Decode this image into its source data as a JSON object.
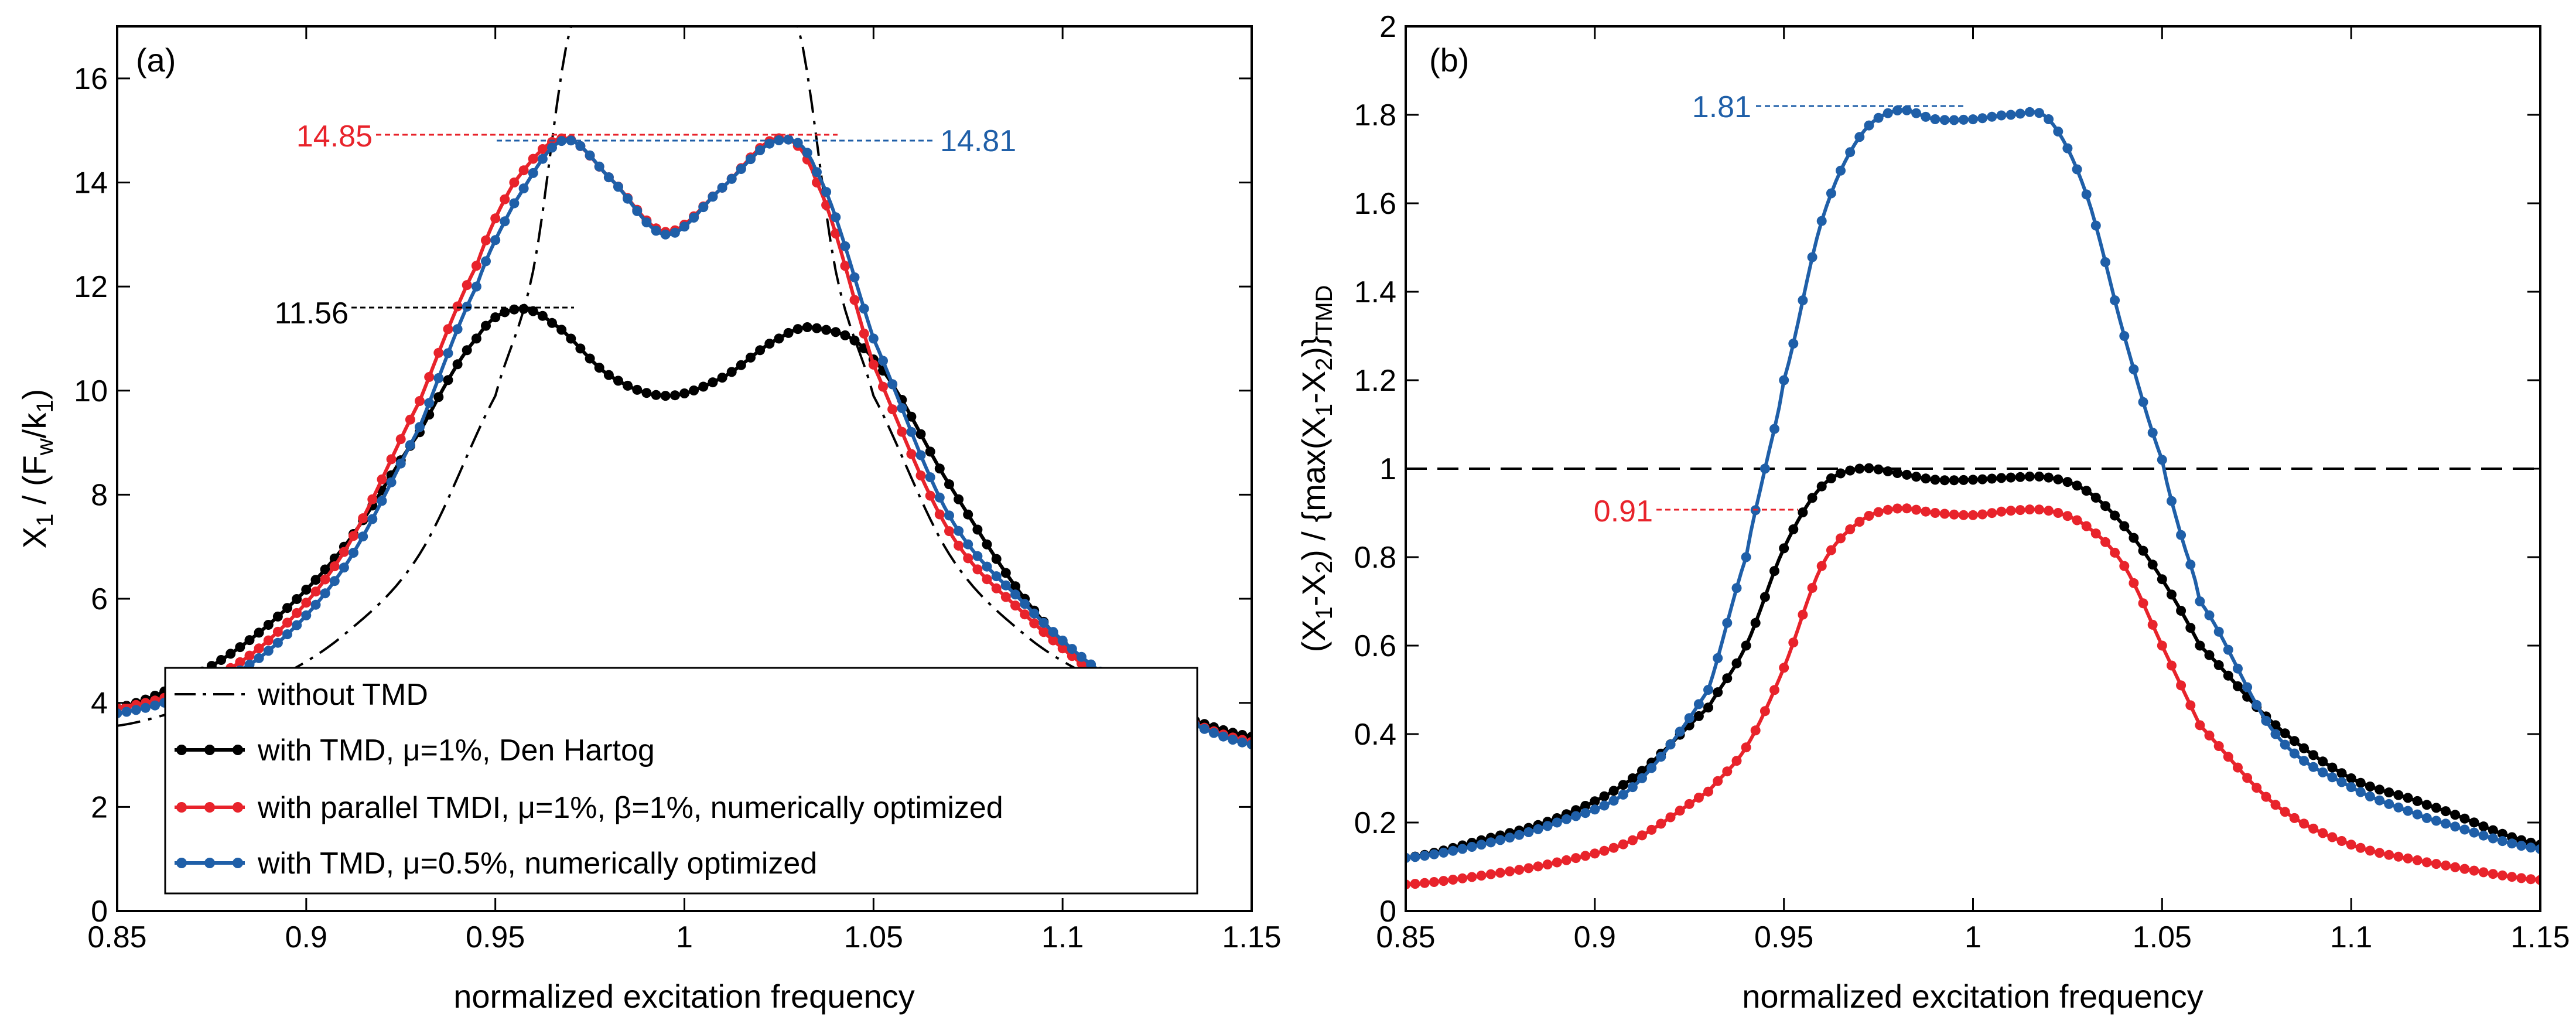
{
  "chart_data": [
    {
      "type": "line",
      "panel_label": "(a)",
      "xlabel": "normalized excitation frequency",
      "ylabel": "X1 / (Fw/k1)",
      "xlim": [
        0.85,
        1.15
      ],
      "ylim": [
        0,
        17
      ],
      "xticks": [
        "0.85",
        "0.9",
        "0.95",
        "1",
        "1.05",
        "1.1",
        "1.15"
      ],
      "yticks": [
        "0",
        "2",
        "4",
        "6",
        "8",
        "10",
        "12",
        "14",
        "16"
      ],
      "grid": false,
      "legend": {
        "placement": "bottom-center",
        "entries": [
          "without TMD",
          "with TMD, μ=1%, Den Hartog",
          "with parallel TMDI, μ=1%, β=1%, numerically optimized",
          "with TMD, μ=0.5%, numerically optimized"
        ]
      },
      "annotations": [
        {
          "text": "14.85",
          "color": "#e8232b"
        },
        {
          "text": "14.81",
          "color": "#1f5fa8"
        },
        {
          "text": "11.56",
          "color": "#000000"
        }
      ],
      "series": [
        {
          "name": "without TMD",
          "color": "#000000",
          "style": "dash-dot",
          "x": [
            0.85,
            0.87,
            0.89,
            0.91,
            0.93,
            0.95,
            0.96,
            0.97,
            1.03,
            1.04,
            1.05,
            1.07,
            1.09,
            1.11,
            1.13,
            1.15
          ],
          "y": [
            3.56,
            3.93,
            4.41,
            5.31,
            6.86,
            9.9,
            12.3,
            17.0,
            17.0,
            12.3,
            9.9,
            6.86,
            5.31,
            4.41,
            3.8,
            3.32
          ]
        },
        {
          "name": "with TMD, μ=1%, Den Hartog",
          "color": "#000000",
          "style": "solid-dots",
          "x": [
            0.85,
            0.87,
            0.89,
            0.91,
            0.93,
            0.945,
            0.955,
            0.965,
            0.98,
            0.995,
            1.01,
            1.025,
            1.035,
            1.05,
            1.07,
            1.09,
            1.11,
            1.13,
            1.15
          ],
          "y": [
            3.9,
            4.5,
            5.5,
            7.0,
            9.2,
            11.0,
            11.56,
            11.3,
            10.3,
            9.9,
            10.25,
            11.0,
            11.2,
            10.6,
            8.2,
            6.0,
            4.5,
            3.8,
            3.35
          ]
        },
        {
          "name": "with parallel TMDI, μ=1%, β=1%, numerically optimized",
          "color": "#e8232b",
          "style": "solid-dots",
          "x": [
            0.85,
            0.87,
            0.89,
            0.91,
            0.93,
            0.945,
            0.955,
            0.968,
            0.98,
            0.995,
            1.01,
            1.025,
            1.035,
            1.05,
            1.07,
            1.09,
            1.11,
            1.13,
            1.15
          ],
          "y": [
            3.9,
            4.3,
            5.2,
            6.9,
            9.8,
            12.4,
            14.0,
            14.85,
            14.1,
            13.05,
            13.9,
            14.85,
            14.0,
            10.5,
            7.3,
            5.7,
            4.5,
            3.75,
            3.25
          ]
        },
        {
          "name": "with TMD, μ=0.5%, numerically optimized",
          "color": "#1f5fa8",
          "style": "solid-dots",
          "x": [
            0.85,
            0.87,
            0.89,
            0.91,
            0.93,
            0.945,
            0.955,
            0.968,
            0.98,
            0.995,
            1.01,
            1.025,
            1.035,
            1.05,
            1.07,
            1.09,
            1.11,
            1.13,
            1.15
          ],
          "y": [
            3.8,
            4.2,
            5.0,
            6.6,
            9.3,
            12.0,
            13.6,
            14.81,
            14.1,
            13.0,
            13.9,
            14.81,
            14.2,
            11.0,
            7.6,
            5.9,
            4.6,
            3.75,
            3.2
          ]
        }
      ]
    },
    {
      "type": "line",
      "panel_label": "(b)",
      "xlabel": "normalized excitation frequency",
      "ylabel": "(X1-X2) / {max(X1-X2)}TMD",
      "xlim": [
        0.85,
        1.15
      ],
      "ylim": [
        0,
        2
      ],
      "xticks": [
        "0.85",
        "0.9",
        "0.95",
        "1",
        "1.05",
        "1.1",
        "1.15"
      ],
      "yticks": [
        "0",
        "0.2",
        "0.4",
        "0.6",
        "0.8",
        "1",
        "1.2",
        "1.4",
        "1.6",
        "1.8",
        "2"
      ],
      "grid": false,
      "reference_line": {
        "y": 1,
        "style": "dashed",
        "color": "#000000"
      },
      "annotations": [
        {
          "text": "1.81",
          "color": "#1f5fa8"
        },
        {
          "text": "0.91",
          "color": "#e8232b"
        }
      ],
      "series": [
        {
          "name": "with TMD, μ=1%, Den Hartog",
          "color": "#000000",
          "style": "solid-dots",
          "x": [
            0.85,
            0.87,
            0.89,
            0.91,
            0.93,
            0.94,
            0.95,
            0.96,
            0.97,
            0.98,
            0.99,
            1.0,
            1.01,
            1.02,
            1.03,
            1.04,
            1.05,
            1.06,
            1.08,
            1.1,
            1.12,
            1.15
          ],
          "y": [
            0.12,
            0.16,
            0.21,
            0.3,
            0.46,
            0.6,
            0.82,
            0.96,
            1.0,
            0.99,
            0.975,
            0.975,
            0.98,
            0.98,
            0.95,
            0.87,
            0.75,
            0.6,
            0.42,
            0.3,
            0.24,
            0.15
          ]
        },
        {
          "name": "with parallel TMDI, μ=1%, β=1%, numerically optimized",
          "color": "#e8232b",
          "style": "solid-dots",
          "x": [
            0.85,
            0.87,
            0.89,
            0.91,
            0.93,
            0.94,
            0.95,
            0.96,
            0.97,
            0.98,
            0.99,
            1.0,
            1.01,
            1.02,
            1.03,
            1.04,
            1.05,
            1.06,
            1.08,
            1.1,
            1.12,
            1.15
          ],
          "y": [
            0.06,
            0.08,
            0.11,
            0.16,
            0.27,
            0.37,
            0.55,
            0.78,
            0.88,
            0.91,
            0.9,
            0.895,
            0.905,
            0.905,
            0.87,
            0.78,
            0.6,
            0.42,
            0.24,
            0.15,
            0.11,
            0.07
          ]
        },
        {
          "name": "with TMD, μ=0.5%, numerically optimized",
          "color": "#1f5fa8",
          "style": "solid-dots",
          "x": [
            0.85,
            0.87,
            0.89,
            0.91,
            0.93,
            0.94,
            0.945,
            0.95,
            0.96,
            0.97,
            0.98,
            0.99,
            1.0,
            1.01,
            1.02,
            1.03,
            1.04,
            1.05,
            1.055,
            1.06,
            1.08,
            1.1,
            1.12,
            1.15
          ],
          "y": [
            0.12,
            0.15,
            0.2,
            0.28,
            0.5,
            0.8,
            1.0,
            1.2,
            1.56,
            1.75,
            1.81,
            1.79,
            1.79,
            1.8,
            1.79,
            1.62,
            1.3,
            1.02,
            0.85,
            0.7,
            0.4,
            0.28,
            0.21,
            0.14
          ]
        }
      ]
    }
  ]
}
